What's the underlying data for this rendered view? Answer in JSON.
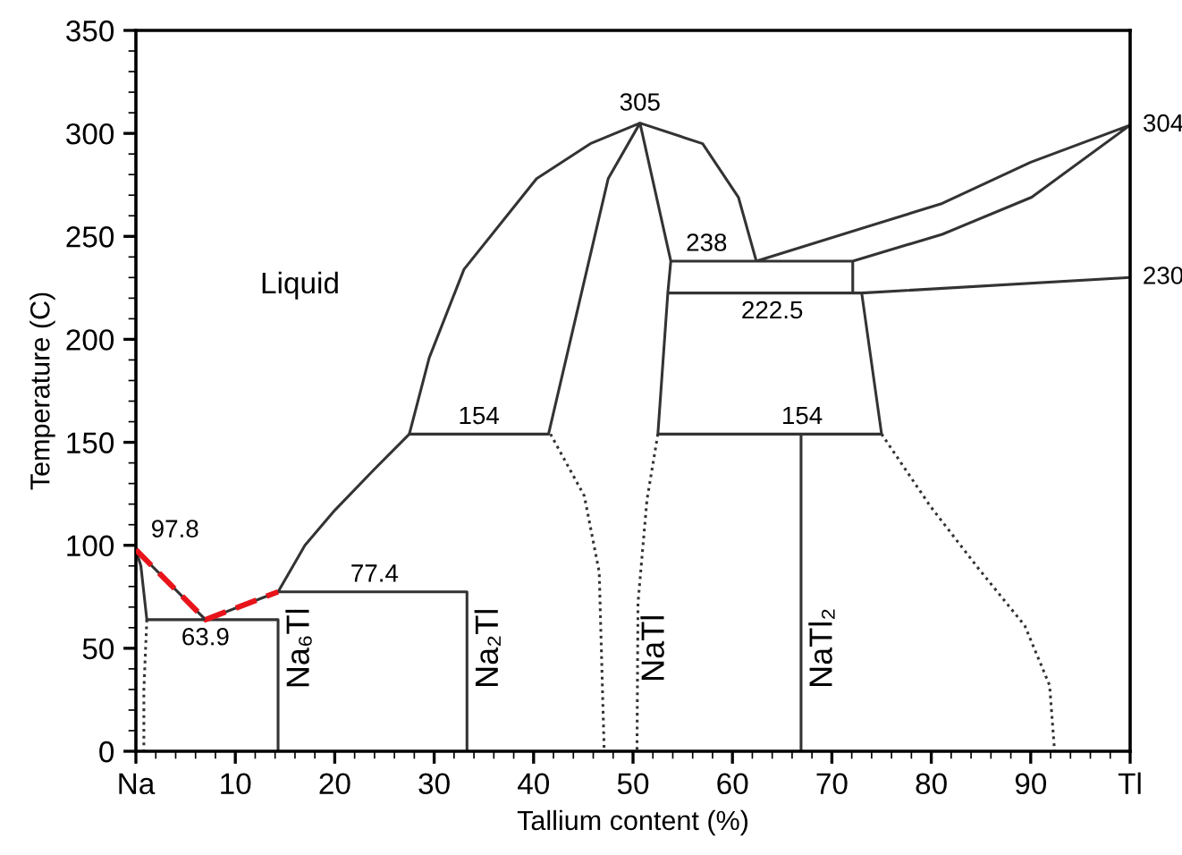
{
  "chart_data": {
    "type": "line",
    "xlabel": "Tallium content (%)",
    "ylabel": "Temperature (C)",
    "xlim": [
      0,
      100
    ],
    "ylim": [
      0,
      350
    ],
    "xticks": [
      {
        "value": 0,
        "label": "Na"
      },
      10,
      20,
      30,
      40,
      50,
      60,
      70,
      80,
      90,
      {
        "value": 100,
        "label": "Tl"
      }
    ],
    "yticks": [
      0,
      50,
      100,
      150,
      200,
      250,
      300,
      350
    ],
    "grid": false,
    "line_style": "solid",
    "series": [
      {
        "color": "#333333",
        "x": [
          1.1,
          0.5,
          0,
          7,
          14.3,
          17,
          20,
          24,
          27.5,
          29.5,
          33,
          40.3,
          45.7,
          50.7,
          57,
          60.6,
          62.4,
          81.1,
          90,
          100,
          90.1,
          81.1,
          72.1,
          72.1,
          73,
          100,
          null,
          1.1,
          14.3,
          14.3,
          null,
          14.3,
          33.3,
          33.3,
          null,
          27.5,
          41.5,
          47.5,
          50.7,
          53.8,
          53.5,
          52.5,
          75,
          73,
          null,
          53.8,
          72.1,
          null,
          53.5,
          73,
          null,
          66.9,
          66.9
        ],
        "values": [
          63.9,
          90,
          97.8,
          63.9,
          77.4,
          100,
          117,
          137,
          154,
          191,
          234,
          278,
          295,
          305,
          295,
          269,
          238,
          266,
          286,
          304,
          269,
          251,
          238,
          222.5,
          222.5,
          230,
          null,
          63.9,
          63.9,
          0,
          null,
          77.4,
          77.4,
          0,
          null,
          154,
          154,
          278,
          305,
          238,
          222.5,
          154,
          154,
          222.5,
          null,
          238,
          238,
          null,
          222.5,
          222.5,
          null,
          0,
          154
        ]
      },
      {
        "color": "#e8141b",
        "line_style": "dashed",
        "x": [
          0,
          7,
          14.3
        ],
        "values": [
          97.8,
          63.9,
          77.4
        ]
      },
      {
        "color": "#333333",
        "line_style": "dotted",
        "x": [
          1.1,
          0.8,
          0.8,
          null,
          41.7,
          45.1,
          46.6,
          47.1,
          null,
          52.5,
          51.4,
          50.5,
          50.4,
          null,
          75,
          79.9,
          84.7,
          89.4,
          91.9,
          92.4
        ],
        "values": [
          63.9,
          30,
          0,
          null,
          154,
          124,
          87,
          0,
          null,
          154,
          122,
          72,
          0,
          null,
          154,
          119,
          89,
          61,
          32,
          0
        ]
      }
    ],
    "annotations": [
      {
        "text": "97.8",
        "x": 0,
        "y": 97.8
      },
      {
        "text": "63.9",
        "x": 7,
        "y": 63.9
      },
      {
        "text": "77.4",
        "x": 24,
        "y": 77.4
      },
      {
        "text": "154",
        "x": 34.5,
        "y": 154
      },
      {
        "text": "305",
        "x": 50.7,
        "y": 305
      },
      {
        "text": "238",
        "x": 57.4,
        "y": 238
      },
      {
        "text": "222.5",
        "x": 64,
        "y": 222.5
      },
      {
        "text": "154",
        "x": 67,
        "y": 154
      },
      {
        "text": "304",
        "x": 100,
        "y": 304
      },
      {
        "text": "230",
        "x": 100,
        "y": 230
      },
      "Liquid",
      {
        "text": "Na₆Tl",
        "x": 14.3,
        "y": 50
      },
      {
        "text": "Na₂Tl",
        "x": 33.3,
        "y": 50
      },
      {
        "text": "NaTl",
        "x": 50,
        "y": 50
      },
      {
        "text": "NaTl₂",
        "x": 66.9,
        "y": 50
      }
    ]
  }
}
